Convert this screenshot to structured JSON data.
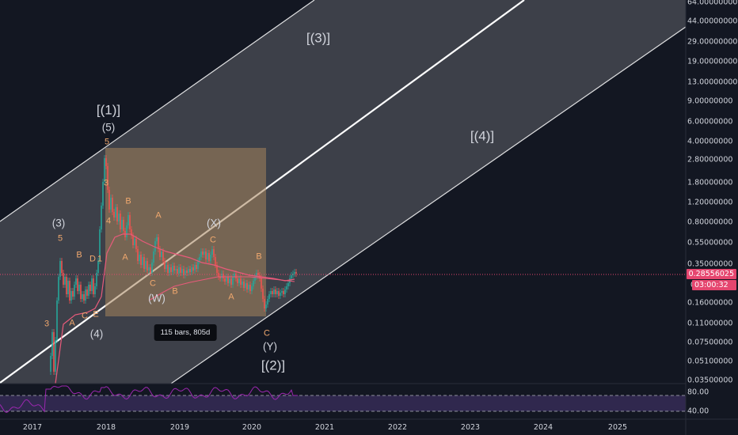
{
  "price_axis": {
    "labels": [
      "64.00000000",
      "44.00000000",
      "29.00000000",
      "19.00000000",
      "13.00000000",
      "9.00000000",
      "6.00000000",
      "4.00000000",
      "2.80000000",
      "1.80000000",
      "1.20000000",
      "0.80000000",
      "0.55000000",
      "0.35000000",
      "0.16000000",
      "0.11000000",
      "0.07500000",
      "0.05100000",
      "0.03500000"
    ],
    "price_marker": "0.28556025",
    "countdown_prefix": "0.",
    "countdown": "03:00:32",
    "marker_color": "#e5466f"
  },
  "time_axis": {
    "labels": [
      "2017",
      "2018",
      "2019",
      "2020",
      "2021",
      "2022",
      "2023",
      "2024",
      "2025"
    ]
  },
  "rsi": {
    "levels": [
      "80.00",
      "40.00"
    ]
  },
  "wave_labels": {
    "major": [
      "[(1)]",
      "[(2)]",
      "[(3)]",
      "[(4)]"
    ],
    "intermediate": [
      "(5)",
      "(3)",
      "(4)",
      "(W)",
      "(X)",
      "(Y)"
    ],
    "minor": [
      "5",
      "5",
      "3",
      "B",
      "A",
      "C",
      "E",
      "D",
      "1",
      "3",
      "4",
      "B",
      "A",
      "C",
      "B",
      "A",
      "C",
      "B",
      "A",
      "C"
    ]
  },
  "measure_tooltip": "115 bars, 805d",
  "colors": {
    "background": "#131722",
    "channel_fill": "#ffffff",
    "channel_line": "#ffffff",
    "candle_up": "#26a69a",
    "candle_down": "#ef5350",
    "measure_box": "#a5835b",
    "rsi_line": "#9c27b0",
    "ma_line": "#e85a7a",
    "wave_orange": "#f0a86e"
  }
}
